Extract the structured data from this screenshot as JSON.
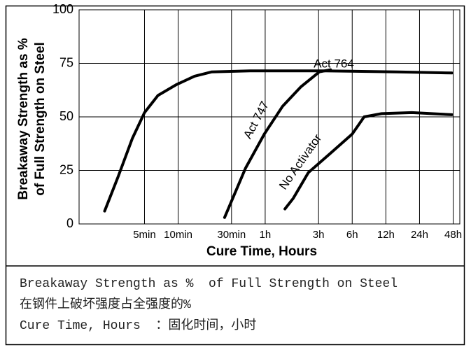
{
  "chart_data": {
    "type": "line",
    "ylabel": [
      "Breakaway Strength as %",
      "of Full Strength on Steel"
    ],
    "xlabel": "Cure Time, Hours",
    "xscale": "log",
    "xlim": [
      1.3,
      3300
    ],
    "xticks": [
      {
        "value": 5,
        "label": "5min"
      },
      {
        "value": 10,
        "label": "10min"
      },
      {
        "value": 30,
        "label": "30min"
      },
      {
        "value": 60,
        "label": "1h"
      },
      {
        "value": 180,
        "label": "3h"
      },
      {
        "value": 360,
        "label": "6h"
      },
      {
        "value": 720,
        "label": "12h"
      },
      {
        "value": 1440,
        "label": "24h"
      },
      {
        "value": 2880,
        "label": "48h"
      }
    ],
    "ylim": [
      0,
      100
    ],
    "yticks": [
      0,
      25,
      50,
      75,
      100
    ],
    "grid": true,
    "series": [
      {
        "name": "Act 764",
        "color": "#000000",
        "x": [
          2.2,
          2.9,
          3.9,
          5,
          6.6,
          9.6,
          14,
          20,
          44,
          200,
          910,
          2800
        ],
        "values": [
          6,
          22,
          40,
          52,
          60,
          65,
          69,
          71,
          71.5,
          71.5,
          71,
          70.5
        ]
      },
      {
        "name": "Act 747",
        "color": "#000000",
        "x": [
          26,
          40,
          59,
          86,
          125,
          183,
          230
        ],
        "values": [
          3,
          26,
          42,
          55,
          64,
          71,
          72
        ]
      },
      {
        "name": "No Activator",
        "color": "#000000",
        "x": [
          90,
          107,
          146,
          230,
          360,
          460,
          660,
          1230,
          2800
        ],
        "values": [
          7,
          12,
          24,
          33,
          42,
          50,
          51.5,
          52,
          51
        ]
      }
    ]
  },
  "notes": [
    "Breakaway Strength as %  of Full Strength on Steel",
    "在钢件上破坏强度占全强度的%",
    "Cure Time, Hours  ：固化时间，小时"
  ]
}
